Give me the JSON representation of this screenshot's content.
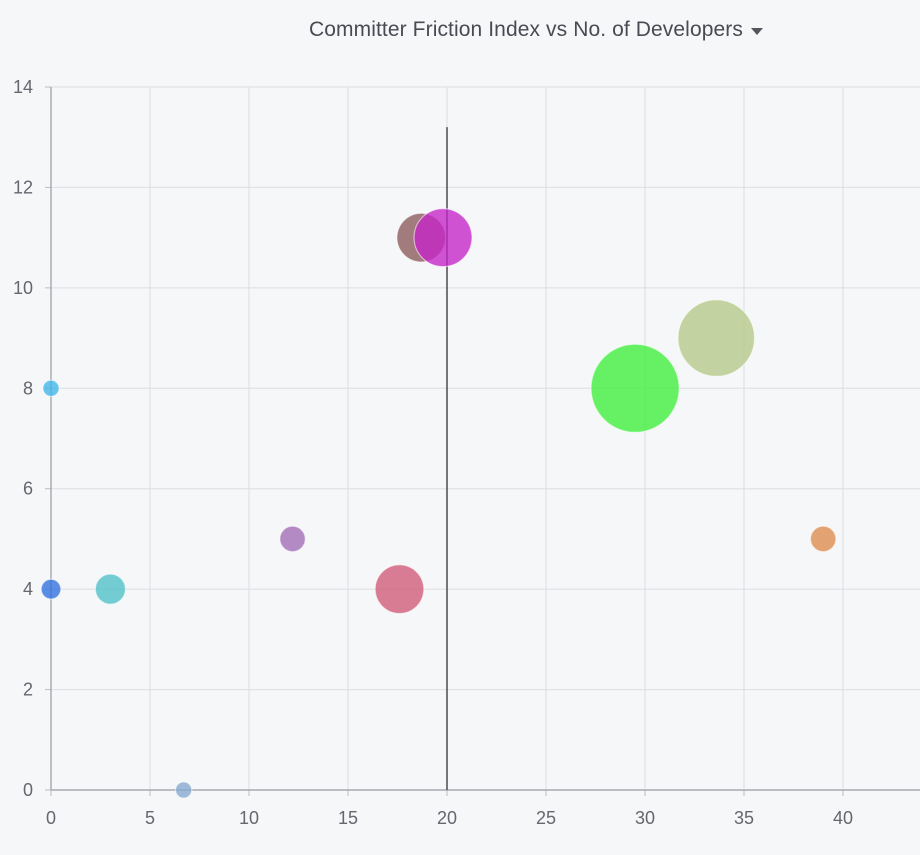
{
  "header": {
    "title": "Committer Friction Index vs No. of Developers"
  },
  "icons": {
    "title_menu": "chevron-down-icon"
  },
  "chart_data": {
    "type": "scatter",
    "variant": "bubble",
    "title": "Committer Friction Index vs No. of Developers",
    "xlabel": "",
    "ylabel": "",
    "xlim": [
      0,
      44
    ],
    "ylim": [
      0,
      14
    ],
    "x_ticks": [
      0,
      5,
      10,
      15,
      20,
      25,
      30,
      35,
      40
    ],
    "y_ticks": [
      0,
      2,
      4,
      6,
      8,
      10,
      12,
      14
    ],
    "grid": true,
    "reference_line": {
      "x": 20,
      "y_top": 13.2,
      "color": "#555555"
    },
    "points": [
      {
        "x": 0,
        "y": 8,
        "size": 1.4,
        "color": "#3fb6e8"
      },
      {
        "x": 0,
        "y": 4,
        "size": 1.7,
        "color": "#2f6fdf"
      },
      {
        "x": 3,
        "y": 4,
        "size": 2.6,
        "color": "#4fc0c8"
      },
      {
        "x": 6.7,
        "y": 0,
        "size": 1.4,
        "color": "#86a9cf"
      },
      {
        "x": 12.2,
        "y": 5,
        "size": 2.2,
        "color": "#a26bb6"
      },
      {
        "x": 17.6,
        "y": 4,
        "size": 4.2,
        "color": "#d05a76"
      },
      {
        "x": 18.7,
        "y": 11,
        "size": 4.2,
        "color": "#8a5a5a"
      },
      {
        "x": 19.8,
        "y": 11,
        "size": 5.0,
        "color": "#c424c8"
      },
      {
        "x": 29.5,
        "y": 8,
        "size": 7.6,
        "color": "#3ef03a"
      },
      {
        "x": 33.6,
        "y": 9,
        "size": 6.6,
        "color": "#b5c888"
      },
      {
        "x": 39,
        "y": 5,
        "size": 2.2,
        "color": "#de8a4a"
      }
    ]
  }
}
